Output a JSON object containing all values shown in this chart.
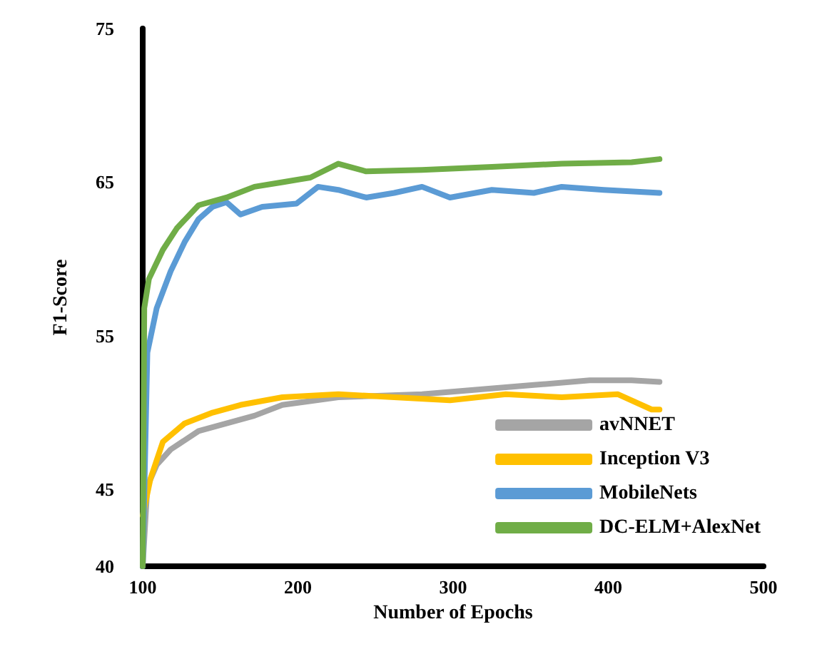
{
  "chart_data": {
    "type": "line",
    "xlabel": "Number of Epochs",
    "ylabel": "F1-Score",
    "xlim": [
      100,
      500
    ],
    "xticks": [
      100,
      200,
      300,
      400,
      500
    ],
    "ylim": [
      40,
      75
    ],
    "yticks": [
      40,
      45,
      55,
      65,
      75
    ],
    "grid": false,
    "legend": "bottom right",
    "marker": "none",
    "line_style": "solid",
    "series": [
      {
        "name": "avNNET",
        "color": "#a5a5a5",
        "x": [
          100,
          103,
          109,
          118,
          136,
          154,
          172,
          190,
          226,
          280,
          316,
          352,
          388,
          415,
          433
        ],
        "values": [
          40,
          45.2,
          46.6,
          47.6,
          48.8,
          49.3,
          49.8,
          50.5,
          51,
          51.2,
          51.5,
          51.8,
          52.1,
          52.1,
          52
        ]
      },
      {
        "name": "Inception V3",
        "color": "#ffc000",
        "x": [
          100,
          105,
          113,
          127,
          145,
          163,
          190,
          226,
          262,
          298,
          334,
          370,
          406,
          428,
          433
        ],
        "values": [
          43.3,
          45.7,
          48.1,
          49.3,
          50,
          50.5,
          51,
          51.2,
          51,
          50.8,
          51.2,
          51,
          51.2,
          50.2,
          50.2
        ]
      },
      {
        "name": "MobileNets",
        "color": "#5b9bd5",
        "x": [
          100,
          103,
          109,
          118,
          127,
          136,
          145,
          154,
          163,
          177,
          199,
          213,
          226,
          244,
          262,
          280,
          298,
          325,
          352,
          370,
          397,
          433
        ],
        "values": [
          40,
          53.9,
          56.8,
          59.2,
          61.1,
          62.6,
          63.4,
          63.7,
          62.9,
          63.4,
          63.6,
          64.7,
          64.5,
          64,
          64.3,
          64.7,
          64,
          64.5,
          64.3,
          64.7,
          64.5,
          64.3
        ]
      },
      {
        "name": "DC-ELM+AlexNet",
        "color": "#70ad47",
        "x": [
          100,
          101,
          104,
          113,
          122,
          136,
          154,
          172,
          190,
          208,
          226,
          244,
          280,
          325,
          370,
          415,
          433
        ],
        "values": [
          40,
          56.8,
          58.7,
          60.6,
          62,
          63.5,
          64,
          64.7,
          65,
          65.3,
          66.2,
          65.7,
          65.8,
          66,
          66.2,
          66.3,
          66.5
        ]
      }
    ]
  }
}
